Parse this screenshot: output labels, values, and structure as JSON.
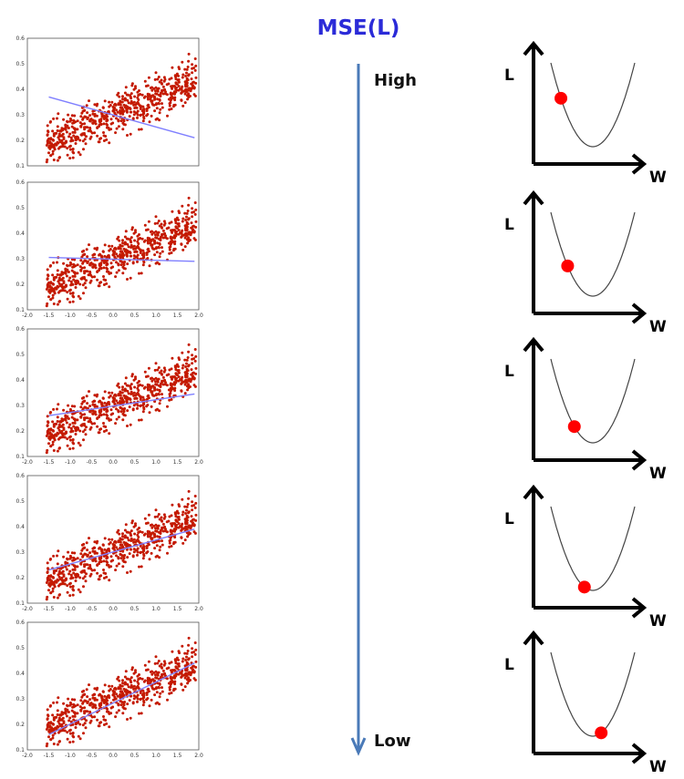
{
  "title": "MSE(L)",
  "arrow": {
    "high_label": "High",
    "low_label": "Low",
    "color": "#4a7ab8"
  },
  "loss_axes": {
    "y_label": "L",
    "x_label": "W"
  },
  "colors": {
    "points": "#c41a00",
    "fit_line": "#7f7fff",
    "ball": "#ff0000",
    "title": "#2b2bd8"
  },
  "chart_data": [
    {
      "type": "scatter",
      "x_ticks": [],
      "y_ticks": [
        "0.1",
        "0.2",
        "0.3",
        "0.4",
        "0.5",
        "0.6"
      ],
      "xlim": [
        -2.0,
        2.0
      ],
      "ylim": [
        0.1,
        0.6
      ],
      "fit_line": {
        "x": [
          -1.5,
          1.9
        ],
        "y": [
          0.37,
          0.21
        ]
      },
      "loss_ball_position": 0.12
    },
    {
      "type": "scatter",
      "x_ticks": [
        "-2.0",
        "-1.5",
        "-1.0",
        "-0.5",
        "0.0",
        "0.5",
        "1.0",
        "1.5",
        "2.0"
      ],
      "y_ticks": [
        "0.1",
        "0.2",
        "0.3",
        "0.4",
        "0.5",
        "0.6"
      ],
      "xlim": [
        -2.0,
        2.0
      ],
      "ylim": [
        0.1,
        0.6
      ],
      "fit_line": {
        "x": [
          -1.5,
          1.9
        ],
        "y": [
          0.305,
          0.29
        ]
      },
      "loss_ball_position": 0.2
    },
    {
      "type": "scatter",
      "x_ticks": [
        "-2.0",
        "-1.5",
        "-1.0",
        "-0.5",
        "0.0",
        "0.5",
        "1.0",
        "1.5",
        "2.0"
      ],
      "y_ticks": [
        "0.1",
        "0.2",
        "0.3",
        "0.4",
        "0.5",
        "0.6"
      ],
      "xlim": [
        -2.0,
        2.0
      ],
      "ylim": [
        0.1,
        0.6
      ],
      "fit_line": {
        "x": [
          -1.5,
          1.9
        ],
        "y": [
          0.26,
          0.345
        ]
      },
      "loss_ball_position": 0.28
    },
    {
      "type": "scatter",
      "x_ticks": [
        "-2.0",
        "-1.5",
        "-1.0",
        "-0.5",
        "0.0",
        "0.5",
        "1.0",
        "1.5",
        "2.0"
      ],
      "y_ticks": [
        "0.1",
        "0.2",
        "0.3",
        "0.4",
        "0.5",
        "0.6"
      ],
      "xlim": [
        -2.0,
        2.0
      ],
      "ylim": [
        0.1,
        0.6
      ],
      "fit_line": {
        "x": [
          -1.5,
          1.9
        ],
        "y": [
          0.23,
          0.39
        ]
      },
      "loss_ball_position": 0.4
    },
    {
      "type": "scatter",
      "x_ticks": [
        "-2.0",
        "-1.5",
        "-1.0",
        "-0.5",
        "0.0",
        "0.5",
        "1.0",
        "1.5",
        "2.0"
      ],
      "y_ticks": [
        "0.1",
        "0.2",
        "0.3",
        "0.4",
        "0.5",
        "0.6"
      ],
      "xlim": [
        -2.0,
        2.0
      ],
      "ylim": [
        0.1,
        0.6
      ],
      "fit_line": {
        "x": [
          -1.5,
          1.9
        ],
        "y": [
          0.16,
          0.44
        ]
      },
      "loss_ball_position": 0.6
    }
  ]
}
